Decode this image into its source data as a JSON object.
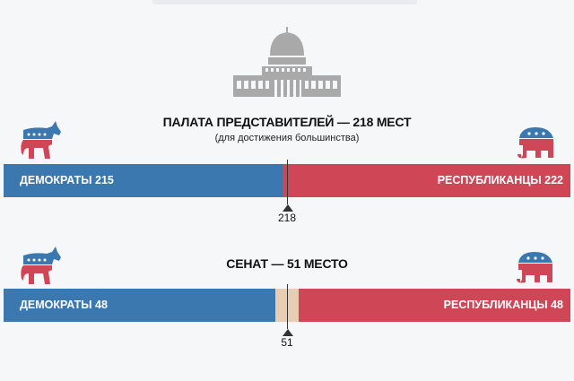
{
  "colors": {
    "democrats": "#3b78b0",
    "republicans": "#cf4756",
    "vacant": "#e8cdb3",
    "background": "#f6f7f9"
  },
  "icons": {
    "building": "capitol-icon",
    "democrats": "donkey-icon",
    "republicans": "elephant-icon"
  },
  "chart_data": [
    {
      "type": "bar",
      "title": "ПАЛАТА ПРЕДСТАВИТЕЛЕЙ — 218 МЕСТ",
      "subtitle": "(для достижения большинства)",
      "total": 437,
      "majority": 218,
      "majority_label": "218",
      "series": [
        {
          "name": "ДЕМОКРАТЫ",
          "value": 215,
          "label": "ДЕМОКРАТЫ 215"
        },
        {
          "name": "РЕСПУБЛИКАНЦЫ",
          "value": 222,
          "label": "РЕСПУБЛИКАНЦЫ 222"
        }
      ]
    },
    {
      "type": "bar",
      "title": "СЕНАТ — 51 МЕСТО",
      "total": 100,
      "majority": 51,
      "majority_label": "51",
      "vacant": 4,
      "series": [
        {
          "name": "ДЕМОКРАТЫ",
          "value": 48,
          "label": "ДЕМОКРАТЫ 48"
        },
        {
          "name": "РЕСПУБЛИКАНЦЫ",
          "value": 48,
          "label": "РЕСПУБЛИКАНЦЫ 48"
        }
      ]
    }
  ]
}
